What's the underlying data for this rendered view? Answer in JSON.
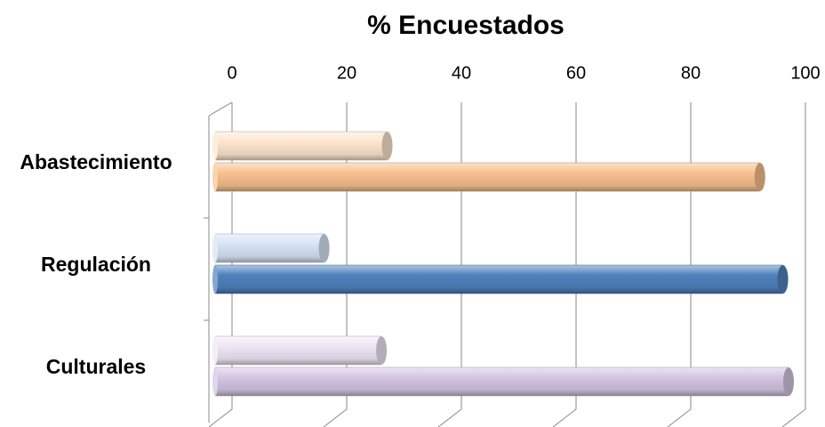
{
  "chart_data": {
    "type": "bar",
    "orientation": "horizontal",
    "title": "% Encuestados",
    "categories": [
      "Abastecimiento",
      "Regulación",
      "Culturales"
    ],
    "series": [
      {
        "colors": [
          "#fde6cf",
          "#d6e4f5",
          "#efe6f5"
        ],
        "values": [
          30,
          19,
          29
        ]
      },
      {
        "colors": [
          "#f8c08e",
          "#4f81bd",
          "#d2c5e3"
        ],
        "values": [
          95,
          99,
          100
        ]
      }
    ],
    "xlim": [
      0,
      100
    ],
    "xticks": [
      0,
      20,
      40,
      60,
      80,
      100
    ],
    "grid": true
  }
}
